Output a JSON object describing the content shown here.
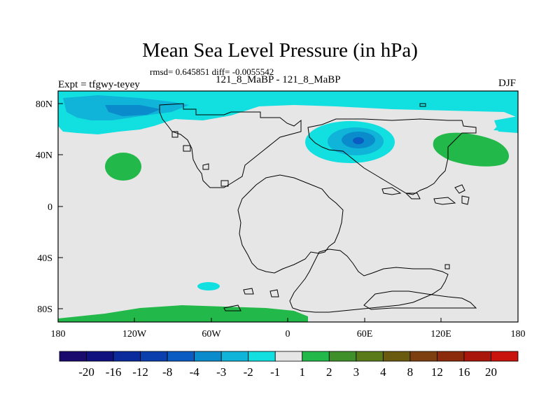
{
  "header": {
    "title": "Mean Sea Level Pressure (in hPa)",
    "stats": "rmsd= 0.645851 diff= -0.0055542",
    "subtitle": "121_8_MaBP - 121_8_MaBP",
    "expt": "Expt = tfgwy-teyey",
    "season": "DJF"
  },
  "map": {
    "lat_ticks": [
      "80N",
      "40N",
      "0",
      "40S",
      "80S"
    ],
    "lon_ticks": [
      "180",
      "120W",
      "60W",
      "0",
      "60E",
      "120E",
      "180"
    ],
    "background_color": "#e6e6e6"
  },
  "colorbar": {
    "colors": [
      "#1a0a6e",
      "#10107e",
      "#0b2a9c",
      "#0b3fae",
      "#0b5cc2",
      "#0a8ccc",
      "#10b4d8",
      "#12dfe0",
      "#e6e6e6",
      "#22b94a",
      "#3f8f2a",
      "#5a7a1a",
      "#6a5a10",
      "#7e3f10",
      "#8c2a0c",
      "#a8160c",
      "#c8140c"
    ],
    "labels": [
      "-20",
      "-16",
      "-12",
      "-8",
      "-4",
      "-3",
      "-2",
      "-1",
      "1",
      "2",
      "3",
      "4",
      "8",
      "12",
      "16",
      "20"
    ]
  }
}
